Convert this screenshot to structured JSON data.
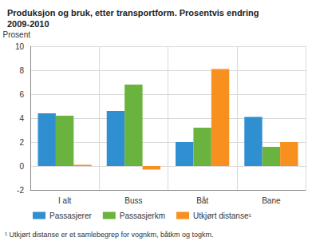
{
  "chart_data": {
    "type": "bar",
    "title": "Produksjon og bruk, etter transportform. Prosentvis endring\n2009-2010",
    "ylabel": "Prosent",
    "categories": [
      "I alt",
      "Buss",
      "Båt",
      "Bane"
    ],
    "series": [
      {
        "name": "Passasjerer",
        "color": "#2f8fd0",
        "values": [
          4.4,
          4.6,
          2.0,
          4.1
        ]
      },
      {
        "name": "Passasjerkm",
        "color": "#6bb33f",
        "values": [
          4.2,
          6.8,
          3.2,
          1.6
        ]
      },
      {
        "name": "Utkjørt distanse¹",
        "color": "#f7901e",
        "values": [
          0.1,
          -0.3,
          8.1,
          2.0
        ]
      }
    ],
    "ylim": [
      -2,
      10
    ],
    "yticks": [
      -2,
      0,
      2,
      4,
      6,
      8,
      10
    ],
    "grid": true,
    "legend": "bottom",
    "annotations": [
      "¹ Utkjørt distanse er et samlebegrep for vognkm, båtkm og togkm."
    ]
  }
}
